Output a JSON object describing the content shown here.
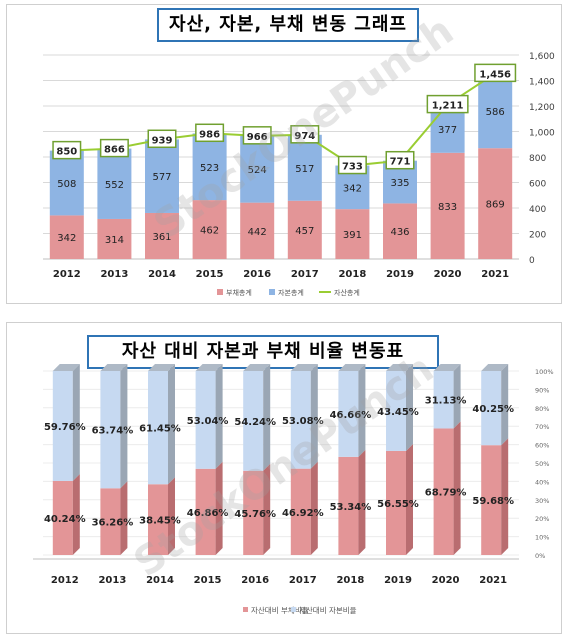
{
  "chart_data": [
    {
      "type": "bar",
      "title": "자산, 자본, 부채 변동 그래프",
      "categories": [
        "2012",
        "2013",
        "2014",
        "2015",
        "2016",
        "2017",
        "2018",
        "2019",
        "2020",
        "2021"
      ],
      "stacked": true,
      "series": [
        {
          "name": "부채총계",
          "type": "bar",
          "color": "#e39597",
          "values": [
            342,
            314,
            361,
            462,
            442,
            457,
            391,
            436,
            833,
            869
          ]
        },
        {
          "name": "자본총계",
          "type": "bar",
          "color": "#8eb4e3",
          "values": [
            508,
            552,
            577,
            523,
            524,
            517,
            342,
            335,
            377,
            586
          ]
        },
        {
          "name": "자산총계",
          "type": "line",
          "color": "#9acd32",
          "values": [
            850,
            866,
            939,
            986,
            966,
            974,
            733,
            771,
            1211,
            1456
          ]
        }
      ],
      "ylim": [
        0,
        1600
      ],
      "yticks": [
        "0",
        "200",
        "400",
        "600",
        "800",
        "1,000",
        "1,200",
        "1,400",
        "1,600"
      ],
      "line_labels": [
        "850",
        "866",
        "939",
        "986",
        "966",
        "974",
        "733",
        "771",
        "1,211",
        "1,456"
      ],
      "grid": true,
      "legend": "bottom"
    },
    {
      "type": "bar",
      "title": "자산 대비 자본과 부채 비율 변동표",
      "categories": [
        "2012",
        "2013",
        "2014",
        "2015",
        "2016",
        "2017",
        "2018",
        "2019",
        "2020",
        "2021"
      ],
      "stacked": true,
      "percent": true,
      "series": [
        {
          "name": "자산대비 부채비율",
          "color": "#e39597",
          "values": [
            40.24,
            36.26,
            38.45,
            46.86,
            45.76,
            46.92,
            53.34,
            56.55,
            68.79,
            59.68
          ],
          "labels": [
            "40.24%",
            "36.26%",
            "38.45%",
            "46.86%",
            "45.76%",
            "46.92%",
            "53.34%",
            "56.55%",
            "68.79%",
            "59.68%"
          ]
        },
        {
          "name": "자산대비 자본비율",
          "color": "#c6d9f1",
          "values": [
            59.76,
            63.74,
            61.45,
            53.04,
            54.24,
            53.08,
            46.66,
            43.45,
            31.13,
            40.25
          ],
          "labels": [
            "59.76%",
            "63.74%",
            "61.45%",
            "53.04%",
            "54.24%",
            "53.08%",
            "46.66%",
            "43.45%",
            "31.13%",
            "40.25%"
          ]
        }
      ],
      "ylim": [
        0,
        100
      ],
      "yticks": [
        "0%",
        "10%",
        "20%",
        "30%",
        "40%",
        "50%",
        "60%",
        "70%",
        "80%",
        "90%",
        "100%"
      ],
      "legend": "bottom"
    }
  ],
  "watermark": "StockOnePunch"
}
